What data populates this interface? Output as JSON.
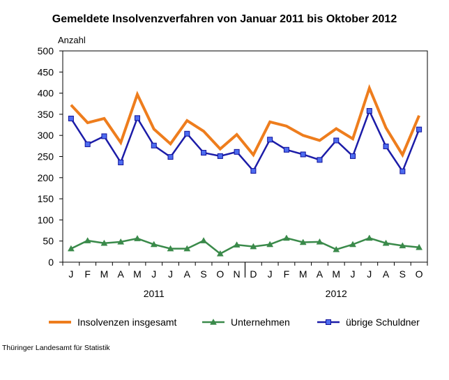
{
  "chart_data": {
    "type": "line",
    "title": "Gemeldete Insolvenzverfahren von Januar 2011 bis Oktober 2012",
    "ylabel": "Anzahl",
    "ylim": [
      0,
      500
    ],
    "yticks": [
      0,
      50,
      100,
      150,
      200,
      250,
      300,
      350,
      400,
      450,
      500
    ],
    "grid": false,
    "legend_position": "bottom",
    "categories": [
      "J",
      "F",
      "M",
      "A",
      "M",
      "J",
      "J",
      "A",
      "S",
      "O",
      "N",
      "D",
      "J",
      "F",
      "M",
      "A",
      "M",
      "J",
      "J",
      "A",
      "S",
      "O"
    ],
    "years": [
      "2011",
      "2012"
    ],
    "series": [
      {
        "name": "Insolvenzen insgesamt",
        "color": "#ee7d1d",
        "marker": "none",
        "values": [
          372,
          330,
          340,
          283,
          397,
          315,
          280,
          335,
          310,
          268,
          302,
          254,
          332,
          322,
          300,
          288,
          316,
          292,
          412,
          318,
          254,
          347
        ]
      },
      {
        "name": "Unternehmen",
        "color": "#3a8a4a",
        "marker": "triangle",
        "values": [
          32,
          51,
          45,
          48,
          56,
          42,
          32,
          32,
          51,
          20,
          41,
          37,
          42,
          57,
          47,
          48,
          30,
          42,
          57,
          45,
          39,
          35
        ]
      },
      {
        "name": "übrige Schuldner",
        "color": "#1c1ca8",
        "marker": "square",
        "values": [
          340,
          279,
          298,
          236,
          341,
          276,
          249,
          304,
          259,
          251,
          261,
          216,
          290,
          266,
          255,
          242,
          288,
          251,
          358,
          274,
          215,
          314
        ]
      }
    ]
  },
  "source": "Thüringer Landesamt für Statistik"
}
